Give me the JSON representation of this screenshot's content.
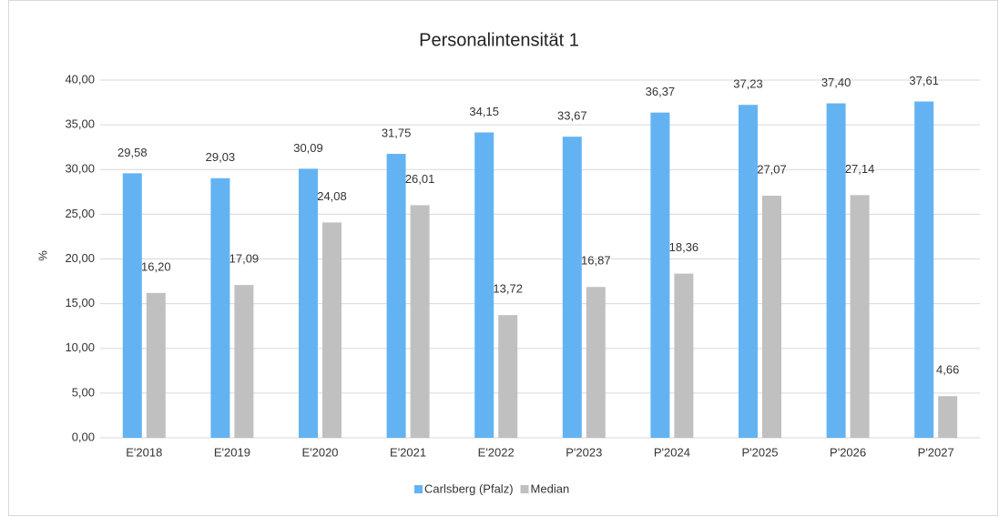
{
  "chart_data": {
    "type": "bar",
    "title": "Personalintensität 1",
    "y_label": "%",
    "categories": [
      "E'2018",
      "E'2019",
      "E'2020",
      "E'2021",
      "E'2022",
      "P'2023",
      "P'2024",
      "P'2025",
      "P'2026",
      "P'2027"
    ],
    "series": [
      {
        "name": "Carlsberg (Pfalz)",
        "color": "#63b3f3",
        "values": [
          29.58,
          29.03,
          30.09,
          31.75,
          34.15,
          33.67,
          36.37,
          37.23,
          37.4,
          37.61
        ],
        "value_labels": [
          "29,58",
          "29,03",
          "30,09",
          "31,75",
          "34,15",
          "33,67",
          "36,37",
          "37,23",
          "37,40",
          "37,61"
        ]
      },
      {
        "name": "Median",
        "color": "#c0c0c0",
        "values": [
          16.2,
          17.09,
          24.08,
          26.01,
          13.72,
          16.87,
          18.36,
          27.07,
          27.14,
          4.66
        ],
        "value_labels": [
          "16,20",
          "17,09",
          "24,08",
          "26,01",
          "13,72",
          "16,87",
          "18,36",
          "27,07",
          "27,14",
          "4,66"
        ]
      }
    ],
    "ylim": [
      0,
      40
    ],
    "yticks": [
      {
        "value": 0,
        "label": "0,00"
      },
      {
        "value": 5,
        "label": "5,00"
      },
      {
        "value": 10,
        "label": "10,00"
      },
      {
        "value": 15,
        "label": "15,00"
      },
      {
        "value": 20,
        "label": "20,00"
      },
      {
        "value": 25,
        "label": "25,00"
      },
      {
        "value": 30,
        "label": "30,00"
      },
      {
        "value": 35,
        "label": "35,00"
      },
      {
        "value": 40,
        "label": "40,00"
      }
    ],
    "grid": true,
    "legend": "bottom"
  }
}
